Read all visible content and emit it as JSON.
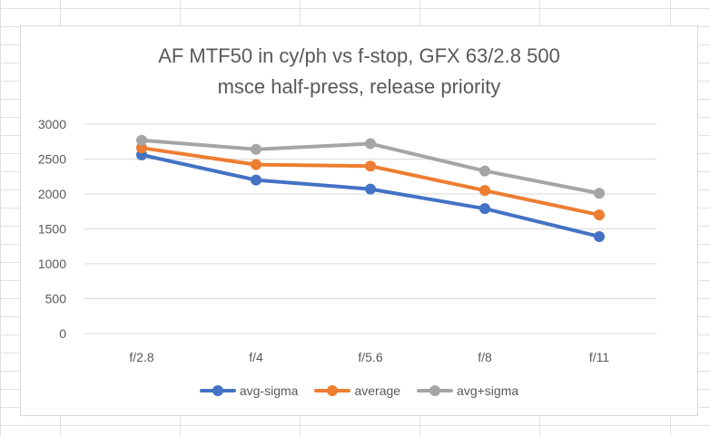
{
  "chart_data": {
    "type": "line",
    "title_lines": [
      "AF MTF50 in cy/ph vs f-stop, GFX 63/2.8 500",
      "msce half-press, release priority"
    ],
    "categories": [
      "f/2.8",
      "f/4",
      "f/5.6",
      "f/8",
      "f/11"
    ],
    "ylim": [
      0,
      3000
    ],
    "yticks": [
      0,
      500,
      1000,
      1500,
      2000,
      2500,
      3000
    ],
    "grid": true,
    "legend_position": "bottom",
    "series": [
      {
        "name": "avg-sigma",
        "color": "#4472C4",
        "values": [
          2560,
          2200,
          2070,
          1790,
          1390
        ]
      },
      {
        "name": "average",
        "color": "#ED7D31",
        "values": [
          2660,
          2420,
          2400,
          2050,
          1700
        ]
      },
      {
        "name": "avg+sigma",
        "color": "#A5A5A5",
        "values": [
          2770,
          2640,
          2720,
          2330,
          2010
        ]
      }
    ]
  }
}
